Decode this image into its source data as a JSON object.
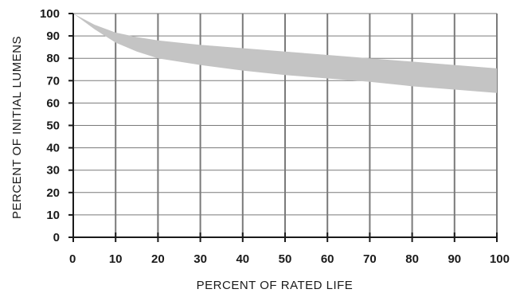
{
  "chart_data": {
    "type": "area",
    "title": "",
    "xlabel": "PERCENT OF RATED LIFE",
    "ylabel": "PERCENT  OF INITIAL LUMENS",
    "xlim": [
      0,
      100
    ],
    "ylim": [
      0,
      100
    ],
    "x_ticks": [
      0,
      10,
      20,
      30,
      40,
      50,
      60,
      70,
      80,
      90,
      100
    ],
    "y_ticks": [
      0,
      10,
      20,
      30,
      40,
      50,
      60,
      70,
      80,
      90,
      100
    ],
    "grid": true,
    "band": {
      "fill": "#c4c4c4",
      "x": [
        0,
        5,
        10,
        15,
        20,
        30,
        40,
        50,
        60,
        70,
        80,
        90,
        100
      ],
      "upper": [
        100,
        95,
        91.5,
        89.5,
        88,
        86,
        84.5,
        83,
        81.5,
        80,
        78.5,
        77,
        75.5
      ],
      "lower": [
        100,
        93,
        87,
        83,
        80,
        77,
        74.5,
        72.5,
        71,
        69.5,
        67.5,
        66,
        64.5
      ]
    }
  },
  "colors": {
    "grid": "#7a7a7a",
    "axis": "#1a1a1a",
    "band": "#c4c4c4"
  }
}
